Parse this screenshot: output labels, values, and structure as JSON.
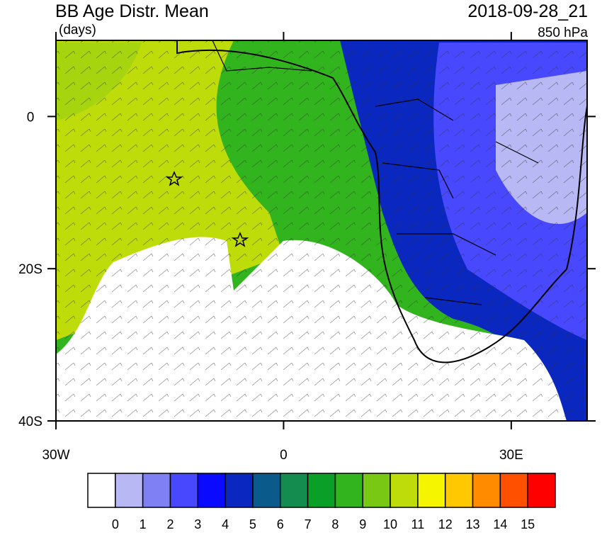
{
  "header": {
    "title": "BB Age Distr. Mean",
    "units": "(days)",
    "time": "2018-09-28_21",
    "level": "850 hPa"
  },
  "map": {
    "lon_range": [
      -30,
      40
    ],
    "lat_range": [
      -40,
      10
    ],
    "lon_ticks": [
      {
        "value": -30,
        "label": "30W"
      },
      {
        "value": 0,
        "label": "0"
      },
      {
        "value": 30,
        "label": "30E"
      }
    ],
    "lat_ticks": [
      {
        "value": 0,
        "label": "0"
      },
      {
        "value": -20,
        "label": "20S"
      },
      {
        "value": -40,
        "label": "40S"
      }
    ]
  },
  "colorbar": {
    "colors": [
      "#ffffff",
      "#b8b8f5",
      "#8080f5",
      "#4848ff",
      "#0a0aff",
      "#0a28c0",
      "#0a5a8c",
      "#148c50",
      "#0aa028",
      "#32b41e",
      "#78c814",
      "#bedc0a",
      "#f5f500",
      "#ffc800",
      "#ff8c00",
      "#ff5000",
      "#ff0000"
    ],
    "labels": [
      "0",
      "1",
      "2",
      "3",
      "4",
      "5",
      "6",
      "7",
      "8",
      "9",
      "10",
      "11",
      "12",
      "13",
      "14",
      "15"
    ]
  }
}
